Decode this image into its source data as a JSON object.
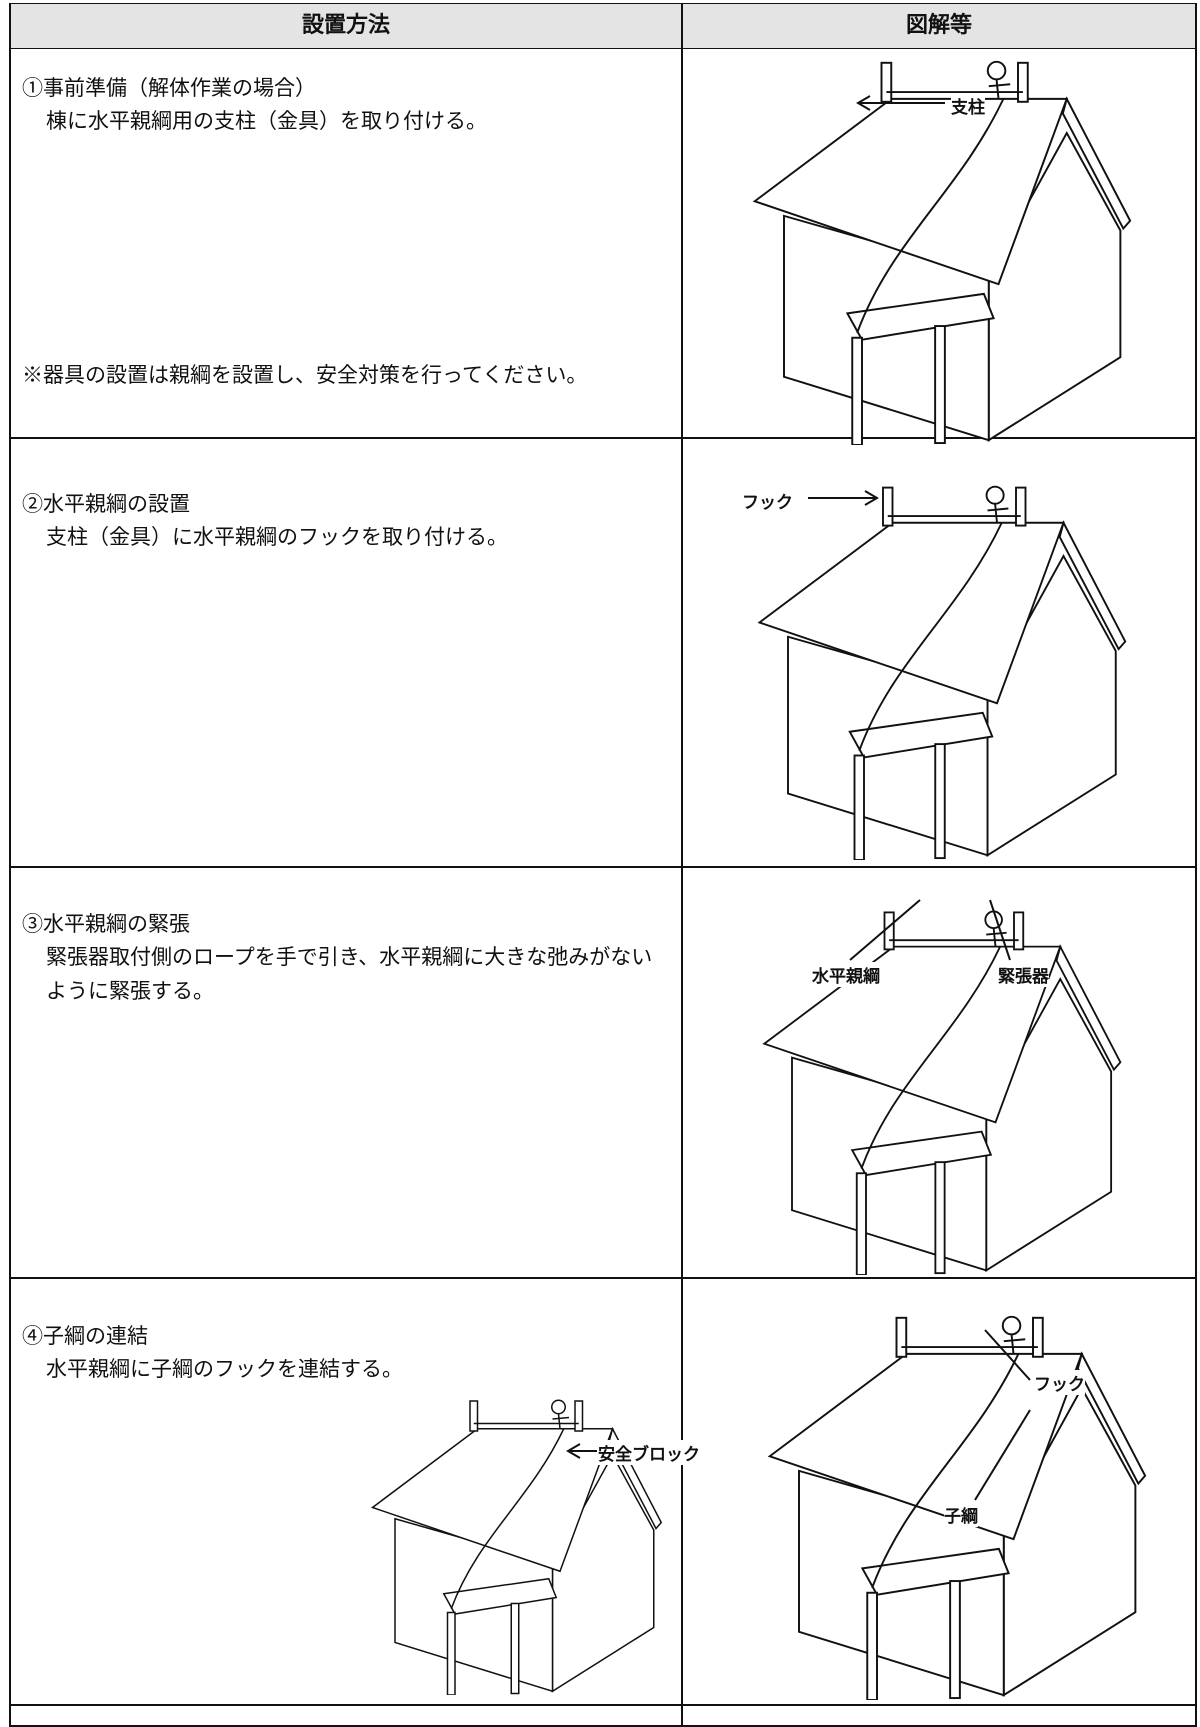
{
  "table": {
    "headers": [
      "設置方法",
      "図解等"
    ],
    "rows": [
      {
        "step": "①事前準備（解体作業の場合）",
        "description": "棟に水平親綱用の支柱（金具）を取り付ける。",
        "note": "※器具の設置は親綱を設置し、安全対策を行ってください。",
        "labels": [
          "支柱"
        ]
      },
      {
        "step": "②水平親綱の設置",
        "description": "支柱（金具）に水平親綱のフックを取り付ける。",
        "labels": [
          "フック"
        ]
      },
      {
        "step": "③水平親綱の緊張",
        "description": "緊張器取付側のロープを手で引き、水平親綱に大きな弛みがないように緊張する。",
        "labels": [
          "水平親綱",
          "緊張器"
        ]
      },
      {
        "step": "④子綱の連結",
        "description": "水平親綱に子綱のフックを連結する。",
        "labels": [
          "安全ブロック",
          "フック",
          "子綱"
        ]
      }
    ]
  }
}
